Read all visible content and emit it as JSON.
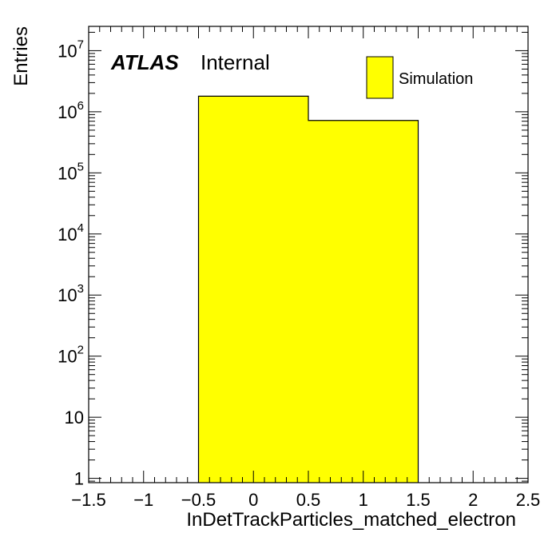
{
  "chart_data": {
    "type": "bar",
    "histogram": true,
    "xlabel": "InDetTrackParticles_matched_electron",
    "ylabel": "Entries",
    "xlim": [
      -1.5,
      2.5
    ],
    "ylim": [
      0.85,
      25000000
    ],
    "yscale": "log",
    "bins": [
      {
        "low": -0.5,
        "high": 0.5,
        "value": 1800000
      },
      {
        "low": 0.5,
        "high": 1.5,
        "value": 720000
      }
    ],
    "series": [
      {
        "name": "Simulation",
        "color": "#ffff00"
      }
    ],
    "x_ticks": [
      {
        "value": -1.5,
        "label": "−1.5"
      },
      {
        "value": -1,
        "label": "−1"
      },
      {
        "value": -0.5,
        "label": "−0.5"
      },
      {
        "value": 0,
        "label": "0"
      },
      {
        "value": 0.5,
        "label": "0.5"
      },
      {
        "value": 1,
        "label": "1"
      },
      {
        "value": 1.5,
        "label": "1.5"
      },
      {
        "value": 2,
        "label": "2"
      },
      {
        "value": 2.5,
        "label": "2.5"
      }
    ],
    "y_ticks": [
      {
        "value": 1,
        "base": "1",
        "exp": ""
      },
      {
        "value": 10,
        "base": "10",
        "exp": ""
      },
      {
        "value": 100,
        "base": "10",
        "exp": "2"
      },
      {
        "value": 1000,
        "base": "10",
        "exp": "3"
      },
      {
        "value": 10000,
        "base": "10",
        "exp": "4"
      },
      {
        "value": 100000,
        "base": "10",
        "exp": "5"
      },
      {
        "value": 1000000,
        "base": "10",
        "exp": "6"
      },
      {
        "value": 10000000,
        "base": "10",
        "exp": "7"
      }
    ],
    "annotation": {
      "bold": "ATLAS",
      "text": "Internal"
    },
    "legend": {
      "position": "top-right",
      "entries": [
        {
          "label": "Simulation",
          "color": "#ffff00"
        }
      ]
    },
    "grid": false
  }
}
